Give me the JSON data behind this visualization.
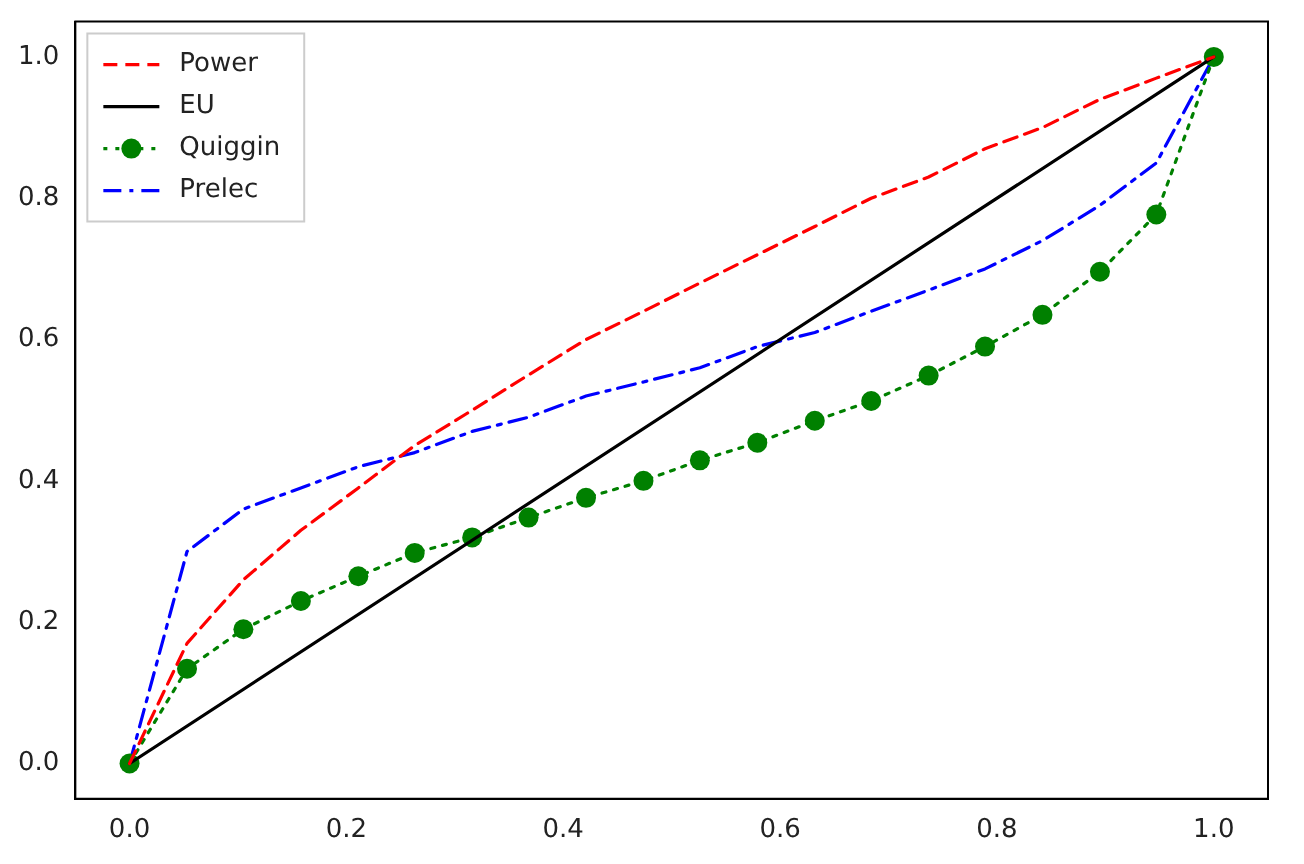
{
  "chart_data": {
    "type": "line",
    "x": [
      0,
      0.053,
      0.105,
      0.158,
      0.211,
      0.263,
      0.316,
      0.368,
      0.421,
      0.474,
      0.526,
      0.579,
      0.632,
      0.684,
      0.737,
      0.789,
      0.842,
      0.895,
      0.947,
      1.0
    ],
    "series": [
      {
        "name": "Power",
        "color": "#ff0000",
        "line_style": "dashed",
        "marker": "none",
        "values": [
          0,
          0.17,
          0.26,
          0.33,
          0.39,
          0.45,
          0.5,
          0.55,
          0.6,
          0.64,
          0.68,
          0.72,
          0.76,
          0.8,
          0.83,
          0.87,
          0.9,
          0.94,
          0.97,
          1.0
        ]
      },
      {
        "name": "EU",
        "color": "#000000",
        "line_style": "solid",
        "marker": "none",
        "x": [
          0,
          1.0
        ],
        "values": [
          0,
          1.0
        ]
      },
      {
        "name": "Quiggin",
        "color": "#008000",
        "line_style": "dotted",
        "marker": "circle",
        "values": [
          0,
          0.134,
          0.19,
          0.23,
          0.265,
          0.298,
          0.32,
          0.348,
          0.376,
          0.4,
          0.429,
          0.454,
          0.485,
          0.513,
          0.549,
          0.59,
          0.635,
          0.696,
          0.777,
          1.0
        ]
      },
      {
        "name": "Prelec",
        "color": "#0000ff",
        "line_style": "dashdot",
        "marker": "none",
        "values": [
          0,
          0.3,
          0.36,
          0.39,
          0.42,
          0.44,
          0.47,
          0.49,
          0.52,
          0.54,
          0.56,
          0.59,
          0.61,
          0.64,
          0.67,
          0.7,
          0.74,
          0.79,
          0.85,
          1.0
        ]
      }
    ],
    "xlim": [
      -0.05,
      1.05
    ],
    "ylim": [
      -0.05,
      1.05
    ],
    "xticks": [
      {
        "value": 0,
        "label": "0.0"
      },
      {
        "value": 0.2,
        "label": "0.2"
      },
      {
        "value": 0.4,
        "label": "0.4"
      },
      {
        "value": 0.6,
        "label": "0.6"
      },
      {
        "value": 0.8,
        "label": "0.8"
      },
      {
        "value": 1.0,
        "label": "1.0"
      }
    ],
    "yticks": [
      {
        "value": 0,
        "label": "0.0"
      },
      {
        "value": 0.2,
        "label": "0.2"
      },
      {
        "value": 0.4,
        "label": "0.4"
      },
      {
        "value": 0.6,
        "label": "0.6"
      },
      {
        "value": 0.8,
        "label": "0.8"
      },
      {
        "value": 1.0,
        "label": "1.0"
      }
    ],
    "legend": "top left",
    "grid": false
  }
}
